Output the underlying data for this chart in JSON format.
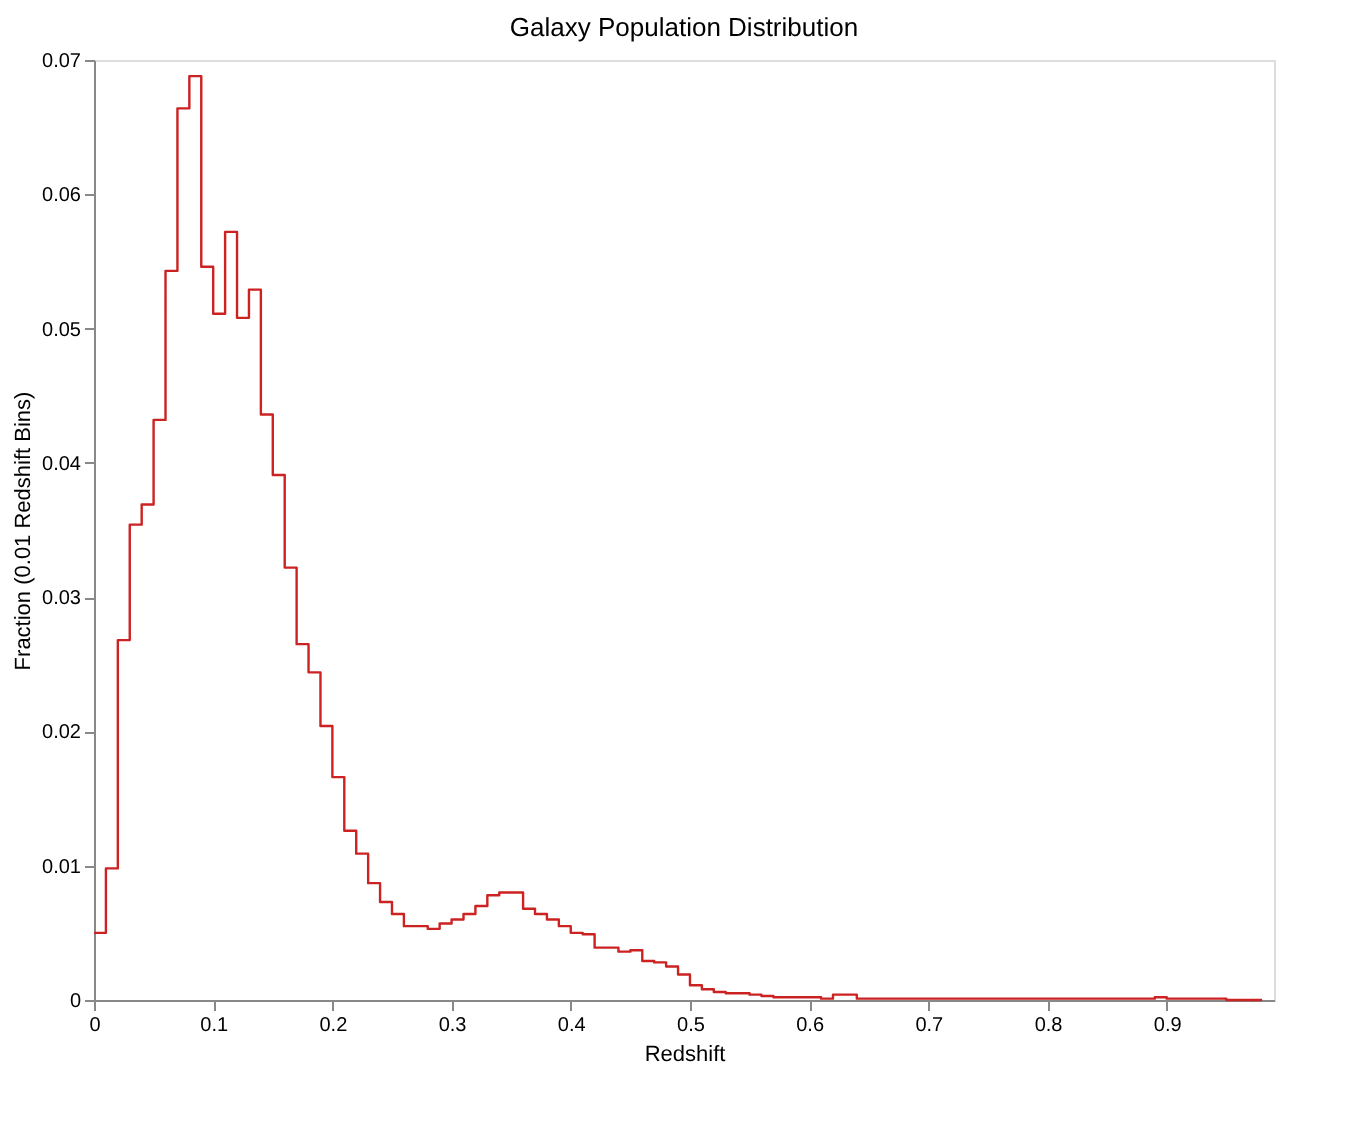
{
  "chart_data": {
    "type": "histogram",
    "title": "Galaxy Population Distribution",
    "xlabel": "Redshift",
    "ylabel": "Fraction (0.01 Redshift Bins)",
    "bins": [
      0,
      0.01,
      0.02,
      0.03,
      0.04,
      0.05,
      0.06,
      0.07,
      0.08,
      0.09,
      0.1,
      0.11,
      0.12,
      0.13,
      0.14,
      0.15,
      0.16,
      0.17,
      0.18,
      0.19,
      0.2,
      0.21,
      0.22,
      0.23,
      0.24,
      0.25,
      0.26,
      0.27,
      0.28,
      0.29,
      0.3,
      0.31,
      0.32,
      0.33,
      0.34,
      0.35,
      0.36,
      0.37,
      0.38,
      0.39,
      0.4,
      0.41,
      0.42,
      0.43,
      0.44,
      0.45,
      0.46,
      0.47,
      0.48,
      0.49,
      0.5,
      0.51,
      0.52,
      0.53,
      0.54,
      0.55,
      0.56,
      0.57,
      0.58,
      0.59,
      0.6,
      0.61,
      0.62,
      0.63,
      0.64,
      0.65,
      0.66,
      0.67,
      0.68,
      0.69,
      0.7,
      0.71,
      0.72,
      0.73,
      0.74,
      0.75,
      0.76,
      0.77,
      0.78,
      0.79,
      0.8,
      0.81,
      0.82,
      0.83,
      0.84,
      0.85,
      0.86,
      0.87,
      0.88,
      0.89,
      0.9,
      0.91,
      0.92,
      0.93,
      0.94,
      0.95,
      0.96,
      0.97,
      0.98
    ],
    "values": [
      0.005,
      0.0098,
      0.0268,
      0.0354,
      0.0369,
      0.0432,
      0.0543,
      0.0664,
      0.0688,
      0.0546,
      0.0511,
      0.0572,
      0.0508,
      0.0529,
      0.0436,
      0.0391,
      0.0322,
      0.0265,
      0.0244,
      0.0204,
      0.0166,
      0.0126,
      0.0109,
      0.0087,
      0.0073,
      0.0064,
      0.0055,
      0.0055,
      0.0053,
      0.0057,
      0.006,
      0.0064,
      0.007,
      0.0078,
      0.008,
      0.008,
      0.0068,
      0.0064,
      0.006,
      0.0055,
      0.005,
      0.0049,
      0.0039,
      0.0039,
      0.0036,
      0.0037,
      0.0029,
      0.0028,
      0.0025,
      0.0019,
      0.0011,
      0.0008,
      0.0006,
      0.0005,
      0.0005,
      0.0004,
      0.0003,
      0.0002,
      0.0002,
      0.0002,
      0.0002,
      0.0001,
      0.0004,
      0.0004,
      0.0001,
      0.0001,
      0.0001,
      0.0001,
      0.0001,
      0.0001,
      0.0001,
      0.0001,
      0.0001,
      0.0001,
      0.0001,
      0.0001,
      0.0001,
      0.0001,
      0.0001,
      0.0001,
      0.0001,
      0.0001,
      0.0001,
      0.0001,
      0.0001,
      0.0001,
      0.0001,
      0.0001,
      0.0001,
      0.0002,
      0.0001,
      0.0001,
      0.0001,
      0.0001,
      0.0001,
      0,
      0,
      0
    ],
    "color": "#cc2222",
    "xlim": [
      0,
      0.99
    ],
    "ylim": [
      0,
      0.07
    ],
    "xticks": [
      0,
      0.1,
      0.2,
      0.3,
      0.4,
      0.5,
      0.6,
      0.7,
      0.8,
      0.9
    ],
    "yticks": [
      0,
      0.01,
      0.02,
      0.03,
      0.04,
      0.05,
      0.06,
      0.07
    ],
    "grid": false
  }
}
